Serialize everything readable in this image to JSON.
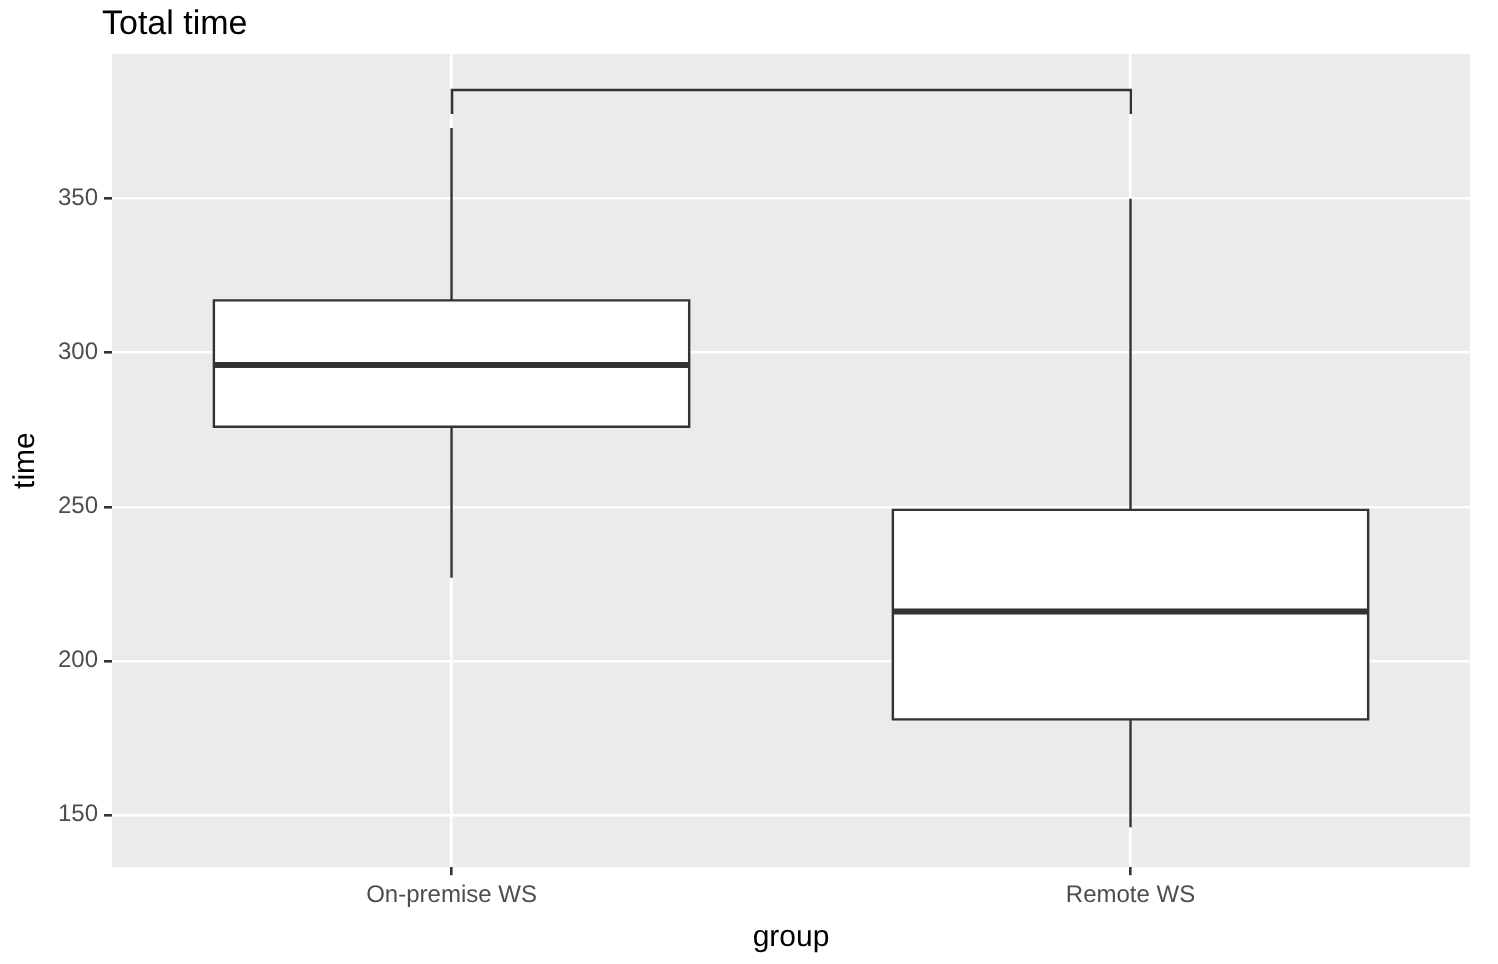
{
  "chart_data": {
    "type": "box",
    "title": "Total time",
    "xlabel": "group",
    "ylabel": "time",
    "categories": [
      "On-premise WS",
      "Remote WS"
    ],
    "boxes": [
      {
        "low": 227,
        "q1": 276,
        "median": 296,
        "q3": 317,
        "high": 373
      },
      {
        "low": 146,
        "q1": 181,
        "median": 216,
        "q3": 249,
        "high": 350
      }
    ],
    "ylim": [
      133,
      397
    ],
    "yticks": [
      150,
      200,
      250,
      300,
      350
    ],
    "grid": true
  }
}
